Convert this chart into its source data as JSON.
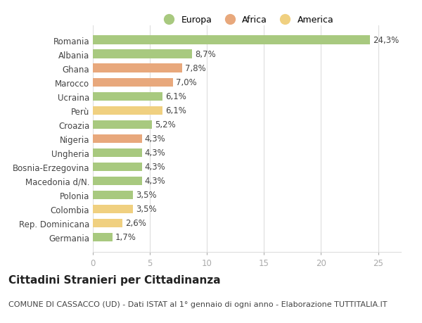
{
  "countries": [
    "Romania",
    "Albania",
    "Ghana",
    "Marocco",
    "Ucraina",
    "Perù",
    "Croazia",
    "Nigeria",
    "Ungheria",
    "Bosnia-Erzegovina",
    "Macedonia d/N.",
    "Polonia",
    "Colombia",
    "Rep. Dominicana",
    "Germania"
  ],
  "values": [
    24.3,
    8.7,
    7.8,
    7.0,
    6.1,
    6.1,
    5.2,
    4.3,
    4.3,
    4.3,
    4.3,
    3.5,
    3.5,
    2.6,
    1.7
  ],
  "labels": [
    "24,3%",
    "8,7%",
    "7,8%",
    "7,0%",
    "6,1%",
    "6,1%",
    "5,2%",
    "4,3%",
    "4,3%",
    "4,3%",
    "4,3%",
    "3,5%",
    "3,5%",
    "2,6%",
    "1,7%"
  ],
  "continents": [
    "Europa",
    "Europa",
    "Africa",
    "Africa",
    "Europa",
    "America",
    "Europa",
    "Africa",
    "Europa",
    "Europa",
    "Europa",
    "Europa",
    "America",
    "America",
    "Europa"
  ],
  "colors": {
    "Europa": "#a8c97f",
    "Africa": "#e8a87c",
    "America": "#f0d080"
  },
  "title": "Cittadini Stranieri per Cittadinanza",
  "subtitle": "COMUNE DI CASSACCO (UD) - Dati ISTAT al 1° gennaio di ogni anno - Elaborazione TUTTITALIA.IT",
  "xlim": [
    0,
    27
  ],
  "xticks": [
    0,
    5,
    10,
    15,
    20,
    25
  ],
  "background_color": "#ffffff",
  "bar_height": 0.62,
  "grid_color": "#dddddd",
  "text_color": "#444444",
  "label_fontsize": 8.5,
  "tick_fontsize": 8.5,
  "title_fontsize": 11,
  "subtitle_fontsize": 8
}
